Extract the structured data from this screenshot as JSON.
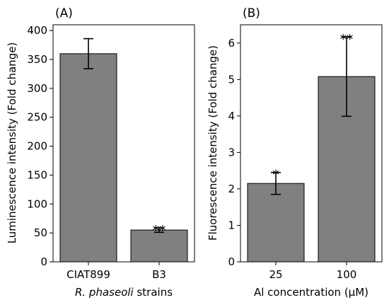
{
  "chart_data": [
    {
      "type": "bar",
      "panel_label": "(A)",
      "categories": [
        "CIAT899",
        "B3"
      ],
      "values": [
        360,
        55
      ],
      "errors": [
        26,
        4
      ],
      "significance": [
        "",
        "**"
      ],
      "xlabel_italic": "R. phaseoli",
      "xlabel_rest": " strains",
      "ylabel": "Luminescence intensity (Fold change)",
      "ylim": [
        0,
        410
      ],
      "yticks": [
        0,
        50,
        100,
        150,
        200,
        250,
        300,
        350,
        400
      ],
      "bar_color": "#808080",
      "grid": false
    },
    {
      "type": "bar",
      "panel_label": "(B)",
      "categories": [
        "25",
        "100"
      ],
      "values": [
        2.15,
        5.08
      ],
      "errors": [
        0.3,
        1.09
      ],
      "significance": [
        "*",
        "**"
      ],
      "xlabel": "Al concentration (μM)",
      "ylabel": "Fluorescence intensity (Fold change)",
      "ylim": [
        0,
        6.5
      ],
      "yticks": [
        0,
        1,
        2,
        3,
        4,
        5,
        6
      ],
      "bar_color": "#808080",
      "grid": false
    }
  ]
}
